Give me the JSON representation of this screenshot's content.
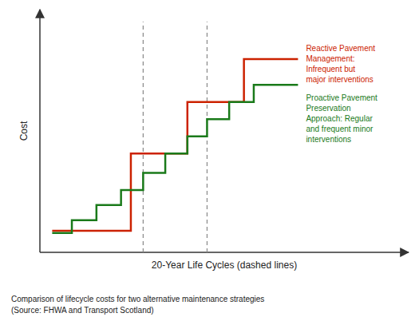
{
  "chart_data": {
    "type": "line",
    "x_label": "20-Year Life Cycles (dashed lines)",
    "y_label": "Cost",
    "caption": "Comparison of lifecycle costs for two alternative maintenance strategies\n(Source: FHWA and Transport Scotland)",
    "xlim": [
      -0.05,
      1.45
    ],
    "ylim": [
      -0.08,
      1.05
    ],
    "tick_labels": false,
    "grid": false,
    "vlines": [
      0.37,
      0.63
    ],
    "series": [
      {
        "annotation": "Reactive Pavement\nManagement:\nInfrequent but\nmajor interventions",
        "color": "#cc2200",
        "x": [
          0,
          0.32,
          0.32,
          0.55,
          0.55,
          0.78,
          0.78,
          1.0
        ],
        "values": [
          0.02,
          0.02,
          0.38,
          0.38,
          0.62,
          0.62,
          0.82,
          0.82
        ]
      },
      {
        "annotation": "Proactive Pavement\nPreservation\nApproach: Regular\nand frequent minor\ninterventions",
        "color": "#1a7a1a",
        "x": [
          0,
          0.08,
          0.08,
          0.18,
          0.18,
          0.28,
          0.28,
          0.37,
          0.37,
          0.46,
          0.46,
          0.55,
          0.55,
          0.63,
          0.63,
          0.72,
          0.72,
          0.82,
          0.82,
          1.0
        ],
        "values": [
          0.01,
          0.01,
          0.07,
          0.07,
          0.14,
          0.14,
          0.21,
          0.21,
          0.29,
          0.29,
          0.38,
          0.38,
          0.46,
          0.46,
          0.54,
          0.54,
          0.62,
          0.62,
          0.7,
          0.7
        ]
      }
    ]
  }
}
